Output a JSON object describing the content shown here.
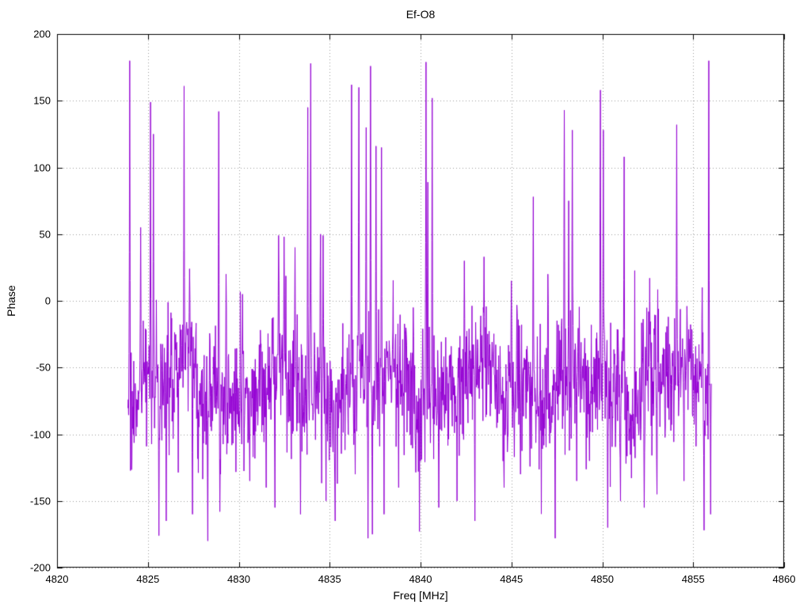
{
  "chart_data": {
    "type": "line",
    "title": "Ef-O8",
    "xlabel": "Freq [MHz]",
    "ylabel": "Phase",
    "xlim": [
      4820,
      4860
    ],
    "ylim": [
      -200,
      200
    ],
    "xticks": [
      4820,
      4825,
      4830,
      4835,
      4840,
      4845,
      4850,
      4855,
      4860
    ],
    "yticks": [
      -200,
      -150,
      -100,
      -50,
      0,
      50,
      100,
      150,
      200
    ],
    "grid": true,
    "legend": "none",
    "line_color": "#9400d3",
    "grid_color": "#9a9a9a",
    "border_color": "#000000",
    "series": {
      "name": "phase",
      "x_start": 4823.9,
      "x_end": 4856.0,
      "n_points": 1600,
      "baseline_mean": -62,
      "noise_sd": 22,
      "seed": 1337,
      "spikes_pos": [
        [
          4824.0,
          180
        ],
        [
          4824.6,
          55
        ],
        [
          4825.15,
          149
        ],
        [
          4825.3,
          125
        ],
        [
          4827.0,
          161
        ],
        [
          4827.3,
          24
        ],
        [
          4828.9,
          142
        ],
        [
          4829.3,
          20
        ],
        [
          4830.2,
          5
        ],
        [
          4832.2,
          49
        ],
        [
          4832.5,
          48
        ],
        [
          4833.1,
          40
        ],
        [
          4833.8,
          145
        ],
        [
          4833.95,
          178
        ],
        [
          4834.5,
          50
        ],
        [
          4834.65,
          49
        ],
        [
          4836.2,
          162
        ],
        [
          4836.6,
          160
        ],
        [
          4837.0,
          130
        ],
        [
          4837.25,
          176
        ],
        [
          4837.55,
          116
        ],
        [
          4837.85,
          115
        ],
        [
          4839.6,
          -5
        ],
        [
          4840.3,
          179
        ],
        [
          4840.4,
          89
        ],
        [
          4840.65,
          152
        ],
        [
          4842.4,
          30
        ],
        [
          4843.5,
          33
        ],
        [
          4845.0,
          15
        ],
        [
          4846.2,
          78
        ],
        [
          4847.0,
          20
        ],
        [
          4847.9,
          143
        ],
        [
          4848.15,
          75
        ],
        [
          4848.35,
          128
        ],
        [
          4849.9,
          158
        ],
        [
          4850.05,
          128
        ],
        [
          4851.2,
          108
        ],
        [
          4852.6,
          17
        ],
        [
          4854.1,
          132
        ],
        [
          4855.5,
          10
        ],
        [
          4855.85,
          180
        ]
      ],
      "spikes_neg": [
        [
          4824.2,
          -100
        ],
        [
          4825.6,
          -176
        ],
        [
          4826.0,
          -165
        ],
        [
          4827.45,
          -160
        ],
        [
          4828.3,
          -180
        ],
        [
          4829.0,
          -130
        ],
        [
          4830.6,
          -135
        ],
        [
          4831.5,
          -140
        ],
        [
          4832.0,
          -155
        ],
        [
          4833.4,
          -160
        ],
        [
          4834.8,
          -150
        ],
        [
          4835.3,
          -165
        ],
        [
          4836.4,
          -130
        ],
        [
          4837.1,
          -178
        ],
        [
          4837.35,
          -175
        ],
        [
          4838.0,
          -160
        ],
        [
          4838.8,
          -140
        ],
        [
          4840.0,
          -120
        ],
        [
          4841.0,
          -155
        ],
        [
          4842.0,
          -150
        ],
        [
          4843.0,
          -165
        ],
        [
          4844.6,
          -140
        ],
        [
          4845.5,
          -130
        ],
        [
          4847.4,
          -178
        ],
        [
          4848.6,
          -135
        ],
        [
          4849.3,
          -120
        ],
        [
          4850.3,
          -170
        ],
        [
          4851.0,
          -150
        ],
        [
          4852.3,
          -155
        ],
        [
          4853.0,
          -145
        ],
        [
          4854.5,
          -135
        ],
        [
          4855.6,
          -172
        ],
        [
          4855.95,
          -160
        ]
      ]
    }
  }
}
